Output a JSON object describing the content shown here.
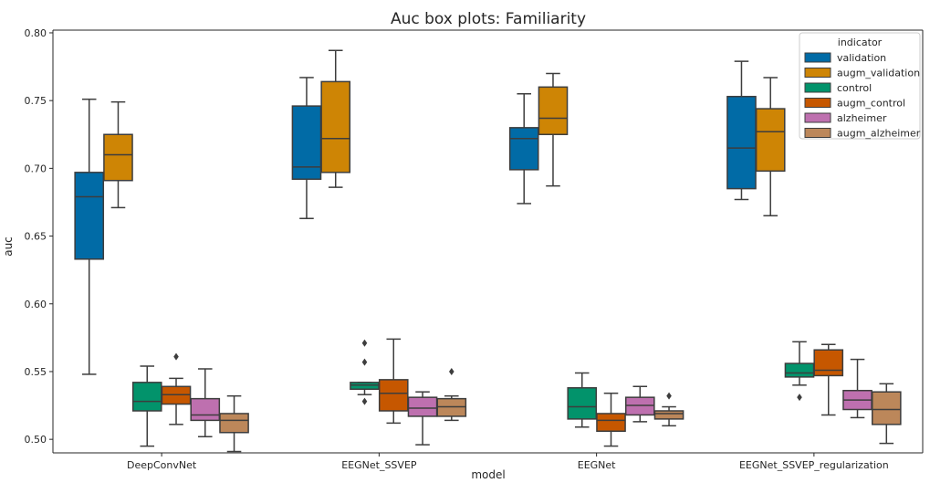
{
  "chart_data": {
    "type": "box",
    "title": "Auc box plots: Familiarity",
    "xlabel": "model",
    "ylabel": "auc",
    "ylim": [
      0.49,
      0.802
    ],
    "yticks": [
      "0.50",
      "0.55",
      "0.60",
      "0.65",
      "0.70",
      "0.75",
      "0.80"
    ],
    "yticks_values": [
      0.5,
      0.55,
      0.6,
      0.65,
      0.7,
      0.75,
      0.8
    ],
    "grid": false,
    "legend_title": "indicator",
    "legend_position": "top-right",
    "categories": [
      "DeepConvNet",
      "EEGNet_SSVEP",
      "EEGNet",
      "EEGNet_SSVEP_regularization"
    ],
    "series": [
      {
        "name": "validation",
        "color": "#0173b2",
        "boxes": [
          {
            "whislo": 0.548,
            "q1": 0.633,
            "med": 0.679,
            "q3": 0.697,
            "whishi": 0.751,
            "fliers": []
          },
          {
            "whislo": 0.663,
            "q1": 0.692,
            "med": 0.701,
            "q3": 0.746,
            "whishi": 0.767,
            "fliers": []
          },
          {
            "whislo": 0.674,
            "q1": 0.699,
            "med": 0.722,
            "q3": 0.73,
            "whishi": 0.755,
            "fliers": []
          },
          {
            "whislo": 0.677,
            "q1": 0.685,
            "med": 0.715,
            "q3": 0.753,
            "whishi": 0.779,
            "fliers": []
          }
        ]
      },
      {
        "name": "augm_validation",
        "color": "#de8f05",
        "boxes": [
          {
            "whislo": 0.671,
            "q1": 0.691,
            "med": 0.71,
            "q3": 0.725,
            "whishi": 0.749,
            "fliers": []
          },
          {
            "whislo": 0.686,
            "q1": 0.697,
            "med": 0.722,
            "q3": 0.764,
            "whishi": 0.787,
            "fliers": []
          },
          {
            "whislo": 0.687,
            "q1": 0.725,
            "med": 0.737,
            "q3": 0.76,
            "whishi": 0.77,
            "fliers": []
          },
          {
            "whislo": 0.665,
            "q1": 0.698,
            "med": 0.727,
            "q3": 0.744,
            "whishi": 0.767,
            "fliers": []
          }
        ]
      },
      {
        "name": "control",
        "color": "#029e73",
        "boxes": [
          {
            "whislo": 0.495,
            "q1": 0.521,
            "med": 0.528,
            "q3": 0.542,
            "whishi": 0.554,
            "fliers": []
          },
          {
            "whislo": 0.533,
            "q1": 0.537,
            "med": 0.54,
            "q3": 0.542,
            "whishi": 0.542,
            "fliers": [
              0.571,
              0.557,
              0.528
            ]
          },
          {
            "whislo": 0.509,
            "q1": 0.515,
            "med": 0.524,
            "q3": 0.538,
            "whishi": 0.549,
            "fliers": []
          },
          {
            "whislo": 0.54,
            "q1": 0.546,
            "med": 0.549,
            "q3": 0.556,
            "whishi": 0.572,
            "fliers": [
              0.531
            ]
          }
        ]
      },
      {
        "name": "augm_control",
        "color": "#d55e00",
        "boxes": [
          {
            "whislo": 0.511,
            "q1": 0.526,
            "med": 0.533,
            "q3": 0.539,
            "whishi": 0.545,
            "fliers": [
              0.561
            ]
          },
          {
            "whislo": 0.512,
            "q1": 0.521,
            "med": 0.534,
            "q3": 0.544,
            "whishi": 0.574,
            "fliers": []
          },
          {
            "whislo": 0.495,
            "q1": 0.506,
            "med": 0.514,
            "q3": 0.519,
            "whishi": 0.534,
            "fliers": []
          },
          {
            "whislo": 0.518,
            "q1": 0.547,
            "med": 0.551,
            "q3": 0.566,
            "whishi": 0.57,
            "fliers": []
          }
        ]
      },
      {
        "name": "alzheimer",
        "color": "#cc78bc",
        "boxes": [
          {
            "whislo": 0.502,
            "q1": 0.514,
            "med": 0.518,
            "q3": 0.53,
            "whishi": 0.552,
            "fliers": []
          },
          {
            "whislo": 0.496,
            "q1": 0.517,
            "med": 0.523,
            "q3": 0.531,
            "whishi": 0.535,
            "fliers": []
          },
          {
            "whislo": 0.513,
            "q1": 0.518,
            "med": 0.525,
            "q3": 0.531,
            "whishi": 0.539,
            "fliers": []
          },
          {
            "whislo": 0.516,
            "q1": 0.522,
            "med": 0.529,
            "q3": 0.536,
            "whishi": 0.559,
            "fliers": []
          }
        ]
      },
      {
        "name": "augm_alzheimer",
        "color": "#ca9161",
        "boxes": [
          {
            "whislo": 0.491,
            "q1": 0.505,
            "med": 0.514,
            "q3": 0.519,
            "whishi": 0.532,
            "fliers": []
          },
          {
            "whislo": 0.514,
            "q1": 0.517,
            "med": 0.524,
            "q3": 0.53,
            "whishi": 0.532,
            "fliers": [
              0.55
            ]
          },
          {
            "whislo": 0.51,
            "q1": 0.515,
            "med": 0.519,
            "q3": 0.521,
            "whishi": 0.524,
            "fliers": [
              0.532
            ]
          },
          {
            "whislo": 0.497,
            "q1": 0.511,
            "med": 0.522,
            "q3": 0.535,
            "whishi": 0.541,
            "fliers": []
          }
        ]
      }
    ]
  }
}
